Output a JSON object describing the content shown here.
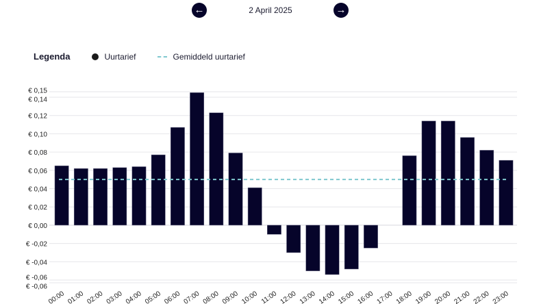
{
  "header": {
    "date": "2 April 2025",
    "prev_icon": "arrow-left-icon",
    "next_icon": "arrow-right-icon"
  },
  "legend": {
    "title": "Legenda",
    "item1": "Uurtarief",
    "item2": "Gemiddeld uurtarief"
  },
  "colors": {
    "bar": "#06042a",
    "average": "#7fc8cf",
    "grid": "#e6e6ea"
  },
  "chart_data": {
    "type": "bar",
    "categories": [
      "00:00",
      "01:00",
      "02:00",
      "03:00",
      "04:00",
      "05:00",
      "06:00",
      "07:00",
      "08:00",
      "09:00",
      "10:00",
      "11:00",
      "12:00",
      "13:00",
      "14:00",
      "15:00",
      "16:00",
      "17:00",
      "18:00",
      "19:00",
      "20:00",
      "21:00",
      "22:00",
      "23:00"
    ],
    "series": [
      {
        "name": "Uurtarief",
        "values": [
          0.065,
          0.062,
          0.062,
          0.063,
          0.064,
          0.077,
          0.107,
          0.145,
          0.123,
          0.079,
          0.041,
          -0.01,
          -0.03,
          -0.05,
          -0.054,
          -0.048,
          -0.025,
          0,
          0.076,
          0.114,
          0.114,
          0.096,
          0.082,
          0.071
        ]
      }
    ],
    "average": {
      "name": "Gemiddeld uurtarief",
      "value": 0.05
    },
    "ylim": [
      -0.063,
      0.146
    ],
    "yticks": [
      {
        "v": 0.146,
        "label": "€ 0,15"
      },
      {
        "v": 0.14,
        "label": "€ 0,14"
      },
      {
        "v": 0.12,
        "label": "€ 0,12"
      },
      {
        "v": 0.1,
        "label": "€ 0,10"
      },
      {
        "v": 0.08,
        "label": "€ 0,08"
      },
      {
        "v": 0.06,
        "label": "€ 0,06"
      },
      {
        "v": 0.04,
        "label": "€ 0,04"
      },
      {
        "v": 0.02,
        "label": "€ 0,02"
      },
      {
        "v": 0,
        "label": "€ 0,00"
      },
      {
        "v": -0.02,
        "label": "€ -0,02"
      },
      {
        "v": -0.04,
        "label": "€ -0,04"
      },
      {
        "v": -0.06,
        "label": "€ -0,06"
      },
      {
        "v": -0.063,
        "label": "€ -0,06"
      }
    ],
    "grid": true
  }
}
